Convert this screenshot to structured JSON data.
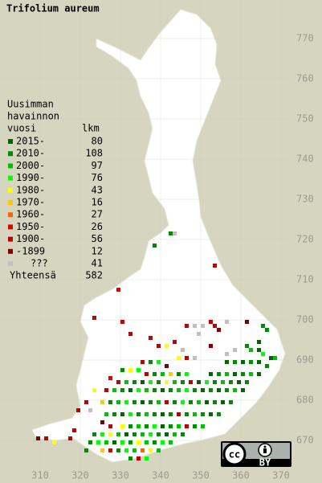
{
  "title": "Trifolium aureum",
  "legend": {
    "heading": [
      "Uusimman",
      "havainnon",
      "vuosi"
    ],
    "count_heading": "lkm",
    "rows": [
      {
        "label": "2015-",
        "count": 80,
        "color": "#006400"
      },
      {
        "label": "2010-",
        "count": 108,
        "color": "#008c00"
      },
      {
        "label": "2000-",
        "count": 97,
        "color": "#00c000"
      },
      {
        "label": "1990-",
        "count": 76,
        "color": "#00ff00"
      },
      {
        "label": "1980-",
        "count": 43,
        "color": "#ffff00"
      },
      {
        "label": "1970-",
        "count": 16,
        "color": "#ffc800"
      },
      {
        "label": "1960-",
        "count": 27,
        "color": "#ff6400"
      },
      {
        "label": "1950-",
        "count": 26,
        "color": "#e00000"
      },
      {
        "label": "1900-",
        "count": 56,
        "color": "#c00000"
      },
      {
        "label": "-1899",
        "count": 12,
        "color": "#800000"
      },
      {
        "label": "???",
        "count": 41,
        "color": "#c0c0c0"
      }
    ],
    "total_label": "Yhteensä",
    "total": 582
  },
  "x_labels": [
    310,
    320,
    330,
    340,
    350,
    360,
    370
  ],
  "y_labels": [
    670,
    680,
    690,
    700,
    710,
    720,
    730,
    740,
    750,
    760,
    770
  ],
  "license": {
    "cc": "cc",
    "by": "BY"
  },
  "squares": [
    [
      342,
      721,
      1
    ],
    [
      343,
      721,
      10
    ],
    [
      338,
      718,
      1
    ],
    [
      353,
      713,
      8
    ],
    [
      329,
      707,
      7
    ],
    [
      330,
      699,
      8
    ],
    [
      323,
      700,
      8
    ],
    [
      346,
      698,
      8
    ],
    [
      348,
      698,
      10
    ],
    [
      350,
      698,
      10
    ],
    [
      352,
      699,
      8
    ],
    [
      353,
      698,
      8
    ],
    [
      354,
      697,
      9
    ],
    [
      349,
      696,
      10
    ],
    [
      356,
      699,
      10
    ],
    [
      361,
      699,
      9
    ],
    [
      365,
      698,
      1
    ],
    [
      366,
      697,
      1
    ],
    [
      364,
      694,
      0
    ],
    [
      332,
      696,
      8
    ],
    [
      337,
      695,
      8
    ],
    [
      343,
      694,
      8
    ],
    [
      341,
      693,
      4
    ],
    [
      339,
      693,
      8
    ],
    [
      345,
      692,
      10
    ],
    [
      352,
      693,
      9
    ],
    [
      356,
      691,
      10
    ],
    [
      358,
      692,
      10
    ],
    [
      361,
      693,
      1
    ],
    [
      362,
      692,
      2
    ],
    [
      364,
      692,
      0
    ],
    [
      365,
      691,
      3
    ],
    [
      367,
      690,
      0
    ],
    [
      368,
      690,
      2
    ],
    [
      344,
      690,
      4
    ],
    [
      346,
      690,
      8
    ],
    [
      348,
      690,
      10
    ],
    [
      335,
      689,
      8
    ],
    [
      337,
      689,
      1
    ],
    [
      339,
      689,
      3
    ],
    [
      341,
      688,
      9
    ],
    [
      356,
      689,
      0
    ],
    [
      358,
      689,
      1
    ],
    [
      360,
      689,
      0
    ],
    [
      362,
      689,
      1
    ],
    [
      364,
      689,
      0
    ],
    [
      366,
      688,
      1
    ],
    [
      330,
      687,
      1
    ],
    [
      332,
      687,
      4
    ],
    [
      334,
      687,
      3
    ],
    [
      336,
      686,
      8
    ],
    [
      338,
      686,
      1
    ],
    [
      340,
      686,
      2
    ],
    [
      342,
      686,
      5
    ],
    [
      344,
      686,
      1
    ],
    [
      346,
      686,
      3
    ],
    [
      352,
      686,
      0
    ],
    [
      354,
      686,
      1
    ],
    [
      356,
      686,
      2
    ],
    [
      358,
      686,
      0
    ],
    [
      360,
      686,
      1
    ],
    [
      362,
      686,
      2
    ],
    [
      364,
      686,
      0
    ],
    [
      327,
      685,
      7
    ],
    [
      329,
      684,
      8
    ],
    [
      331,
      684,
      2
    ],
    [
      333,
      684,
      1
    ],
    [
      335,
      684,
      0
    ],
    [
      337,
      684,
      3
    ],
    [
      339,
      684,
      1
    ],
    [
      341,
      684,
      4
    ],
    [
      343,
      684,
      2
    ],
    [
      345,
      684,
      1
    ],
    [
      347,
      684,
      8
    ],
    [
      349,
      684,
      0
    ],
    [
      351,
      684,
      3
    ],
    [
      353,
      684,
      1
    ],
    [
      355,
      684,
      2
    ],
    [
      357,
      684,
      1
    ],
    [
      359,
      684,
      0
    ],
    [
      361,
      684,
      1
    ],
    [
      323,
      682,
      4
    ],
    [
      326,
      682,
      8
    ],
    [
      328,
      682,
      2
    ],
    [
      330,
      682,
      1
    ],
    [
      332,
      682,
      0
    ],
    [
      334,
      682,
      3
    ],
    [
      336,
      682,
      2
    ],
    [
      338,
      682,
      1
    ],
    [
      340,
      682,
      0
    ],
    [
      342,
      682,
      1
    ],
    [
      344,
      682,
      2
    ],
    [
      346,
      682,
      3
    ],
    [
      348,
      682,
      1
    ],
    [
      350,
      682,
      0
    ],
    [
      352,
      682,
      1
    ],
    [
      354,
      682,
      0
    ],
    [
      356,
      682,
      1
    ],
    [
      358,
      682,
      2
    ],
    [
      360,
      682,
      0
    ],
    [
      321,
      679,
      8
    ],
    [
      325,
      679,
      5
    ],
    [
      327,
      679,
      1
    ],
    [
      329,
      679,
      2
    ],
    [
      331,
      679,
      3
    ],
    [
      333,
      679,
      1
    ],
    [
      335,
      679,
      0
    ],
    [
      337,
      679,
      1
    ],
    [
      339,
      679,
      2
    ],
    [
      341,
      679,
      8
    ],
    [
      343,
      679,
      1
    ],
    [
      345,
      679,
      3
    ],
    [
      347,
      679,
      1
    ],
    [
      349,
      679,
      2
    ],
    [
      351,
      679,
      0
    ],
    [
      353,
      679,
      1
    ],
    [
      355,
      679,
      0
    ],
    [
      357,
      679,
      1
    ],
    [
      319,
      677,
      8
    ],
    [
      322,
      677,
      10
    ],
    [
      326,
      676,
      2
    ],
    [
      328,
      676,
      1
    ],
    [
      330,
      676,
      0
    ],
    [
      332,
      676,
      3
    ],
    [
      334,
      676,
      1
    ],
    [
      336,
      676,
      2
    ],
    [
      338,
      676,
      1
    ],
    [
      340,
      676,
      0
    ],
    [
      342,
      676,
      1
    ],
    [
      344,
      676,
      8
    ],
    [
      346,
      676,
      1
    ],
    [
      348,
      676,
      2
    ],
    [
      350,
      676,
      1
    ],
    [
      352,
      676,
      0
    ],
    [
      354,
      676,
      1
    ],
    [
      325,
      674,
      9
    ],
    [
      327,
      673,
      8
    ],
    [
      330,
      673,
      4
    ],
    [
      332,
      673,
      1
    ],
    [
      334,
      673,
      2
    ],
    [
      336,
      673,
      1
    ],
    [
      338,
      673,
      3
    ],
    [
      340,
      673,
      0
    ],
    [
      342,
      673,
      1
    ],
    [
      344,
      673,
      2
    ],
    [
      346,
      673,
      8
    ],
    [
      348,
      673,
      1
    ],
    [
      350,
      673,
      2
    ],
    [
      318,
      672,
      8
    ],
    [
      323,
      671,
      1
    ],
    [
      325,
      671,
      3
    ],
    [
      327,
      671,
      4
    ],
    [
      329,
      671,
      2
    ],
    [
      331,
      671,
      0
    ],
    [
      333,
      671,
      1
    ],
    [
      335,
      671,
      2
    ],
    [
      337,
      671,
      3
    ],
    [
      339,
      671,
      1
    ],
    [
      341,
      671,
      0
    ],
    [
      343,
      671,
      2
    ],
    [
      345,
      671,
      1
    ],
    [
      317,
      670,
      8
    ],
    [
      309,
      670,
      9
    ],
    [
      311,
      670,
      8
    ],
    [
      313,
      669,
      4
    ],
    [
      322,
      669,
      1
    ],
    [
      324,
      669,
      3
    ],
    [
      326,
      669,
      2
    ],
    [
      328,
      669,
      0
    ],
    [
      330,
      669,
      3
    ],
    [
      332,
      669,
      1
    ],
    [
      334,
      669,
      4
    ],
    [
      336,
      669,
      2
    ],
    [
      338,
      669,
      1
    ],
    [
      340,
      669,
      3
    ],
    [
      342,
      669,
      2
    ],
    [
      321,
      667,
      1
    ],
    [
      325,
      667,
      5
    ],
    [
      327,
      667,
      7
    ],
    [
      329,
      667,
      1
    ],
    [
      331,
      667,
      3
    ],
    [
      333,
      667,
      2
    ],
    [
      335,
      667,
      6
    ],
    [
      337,
      667,
      4
    ],
    [
      339,
      667,
      2
    ],
    [
      332,
      665,
      1
    ],
    [
      334,
      665,
      8
    ],
    [
      336,
      665,
      3
    ]
  ]
}
